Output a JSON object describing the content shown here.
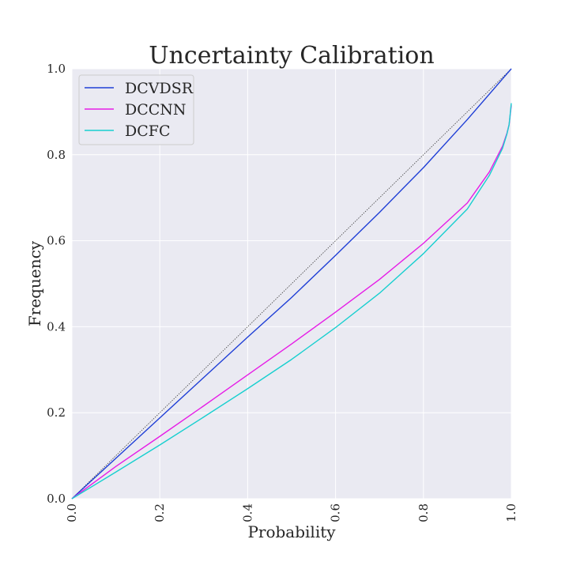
{
  "chart_data": {
    "type": "line",
    "title": "Uncertainty Calibration",
    "xlabel": "Probability",
    "ylabel": "Frequency",
    "xlim": [
      0.0,
      1.0
    ],
    "ylim": [
      0.0,
      1.0
    ],
    "xticks": [
      "0.0",
      "0.2",
      "0.4",
      "0.6",
      "0.8",
      "1.0"
    ],
    "yticks": [
      "0.0",
      "0.2",
      "0.4",
      "0.6",
      "0.8",
      "1.0"
    ],
    "grid": true,
    "legend_position": "top-left",
    "reference_line": {
      "x": [
        0.0,
        1.0
      ],
      "y": [
        0.0,
        1.0
      ],
      "style": "dotted",
      "color": "#404040"
    },
    "series": [
      {
        "name": "DCVDSR",
        "color": "#1f3fd6",
        "x": [
          0.0,
          0.1,
          0.2,
          0.3,
          0.4,
          0.5,
          0.6,
          0.7,
          0.8,
          0.9,
          1.0
        ],
        "y": [
          0.0,
          0.094,
          0.188,
          0.282,
          0.376,
          0.468,
          0.566,
          0.666,
          0.77,
          0.882,
          1.0
        ]
      },
      {
        "name": "DCCNN",
        "color": "#e61ce6",
        "x": [
          0.0,
          0.1,
          0.2,
          0.3,
          0.4,
          0.5,
          0.6,
          0.7,
          0.8,
          0.9,
          0.95,
          0.98,
          0.99,
          0.995,
          1.0
        ],
        "y": [
          0.0,
          0.075,
          0.145,
          0.216,
          0.288,
          0.36,
          0.434,
          0.51,
          0.594,
          0.688,
          0.76,
          0.82,
          0.85,
          0.87,
          0.915
        ]
      },
      {
        "name": "DCFC",
        "color": "#17cfcf",
        "x": [
          0.0,
          0.1,
          0.2,
          0.3,
          0.4,
          0.5,
          0.6,
          0.7,
          0.8,
          0.9,
          0.95,
          0.98,
          0.99,
          0.995,
          1.0
        ],
        "y": [
          0.0,
          0.062,
          0.125,
          0.19,
          0.256,
          0.324,
          0.398,
          0.478,
          0.57,
          0.674,
          0.752,
          0.815,
          0.848,
          0.87,
          0.92
        ]
      }
    ]
  },
  "colors": {
    "plot_background": "#eaeaf2",
    "grid": "#ffffff",
    "text": "#262626"
  }
}
